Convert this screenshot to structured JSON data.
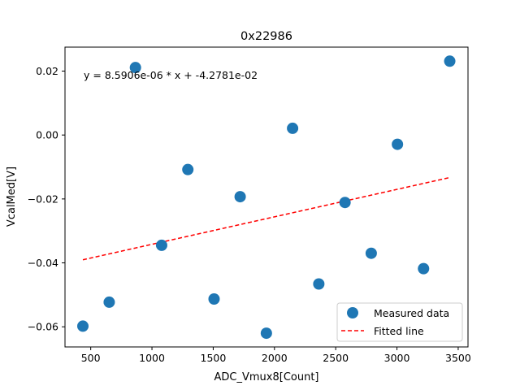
{
  "chart_data": {
    "type": "scatter",
    "title": "0x22986",
    "xlabel": "ADC_Vmux8[Count]",
    "ylabel": "VcalMed[V]",
    "xlim": [
      290,
      3580
    ],
    "ylim": [
      -0.0663,
      0.0275
    ],
    "xticks": [
      500,
      1000,
      1500,
      2000,
      2500,
      3000,
      3500
    ],
    "xtick_labels": [
      "500",
      "1000",
      "1500",
      "2000",
      "2500",
      "3000",
      "3500"
    ],
    "yticks": [
      -0.06,
      -0.04,
      -0.02,
      0.0,
      0.02
    ],
    "ytick_labels": [
      "−0.06",
      "−0.04",
      "−0.02",
      "0.00",
      "0.02"
    ],
    "annotation": "y = 8.5906e-06 * x + -4.2781e-02",
    "legend_position": "lower-right",
    "grid": false,
    "series": [
      {
        "name": "Measured data",
        "kind": "scatter",
        "color": "#1f77b4",
        "points": [
          {
            "x": 436,
            "y": -0.0598
          },
          {
            "x": 651,
            "y": -0.0523
          },
          {
            "x": 865,
            "y": 0.0211
          },
          {
            "x": 1079,
            "y": -0.0345
          },
          {
            "x": 1293,
            "y": -0.0108
          },
          {
            "x": 1507,
            "y": -0.0513
          },
          {
            "x": 1720,
            "y": -0.0193
          },
          {
            "x": 1934,
            "y": -0.062
          },
          {
            "x": 2148,
            "y": 0.0021
          },
          {
            "x": 2362,
            "y": -0.0466
          },
          {
            "x": 2576,
            "y": -0.0211
          },
          {
            "x": 2790,
            "y": -0.037
          },
          {
            "x": 3004,
            "y": -0.0029
          },
          {
            "x": 3217,
            "y": -0.0418
          },
          {
            "x": 3431,
            "y": 0.0231
          }
        ]
      },
      {
        "name": "Fitted line",
        "kind": "line",
        "style": "dashed",
        "color": "#ff0000",
        "slope": 8.5906e-06,
        "intercept": -0.042781,
        "x_range": [
          436,
          3431
        ]
      }
    ]
  }
}
